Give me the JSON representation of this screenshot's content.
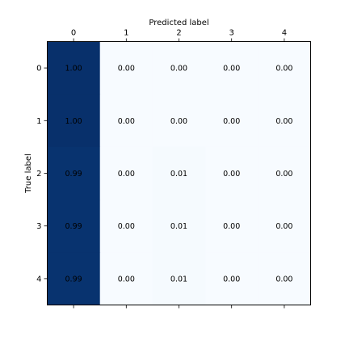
{
  "chart_data": {
    "type": "heatmap",
    "xlabel": "Predicted label",
    "ylabel": "True label",
    "x_categories": [
      "0",
      "1",
      "2",
      "3",
      "4"
    ],
    "y_categories": [
      "0",
      "1",
      "2",
      "3",
      "4"
    ],
    "values": [
      [
        1.0,
        0.0,
        0.0,
        0.0,
        0.0
      ],
      [
        1.0,
        0.0,
        0.0,
        0.0,
        0.0
      ],
      [
        0.99,
        0.0,
        0.01,
        0.0,
        0.0
      ],
      [
        0.99,
        0.0,
        0.01,
        0.0,
        0.0
      ],
      [
        0.99,
        0.0,
        0.01,
        0.0,
        0.0
      ]
    ],
    "cell_labels": [
      [
        "1.00",
        "0.00",
        "0.00",
        "0.00",
        "0.00"
      ],
      [
        "1.00",
        "0.00",
        "0.00",
        "0.00",
        "0.00"
      ],
      [
        "0.99",
        "0.00",
        "0.01",
        "0.00",
        "0.00"
      ],
      [
        "0.99",
        "0.00",
        "0.01",
        "0.00",
        "0.00"
      ],
      [
        "0.99",
        "0.00",
        "0.01",
        "0.00",
        "0.00"
      ]
    ],
    "colormap": "Blues",
    "color_low": "#f7fbff",
    "color_high": "#08306b",
    "x_axis_position": "top",
    "grid": false,
    "legend": "none"
  }
}
